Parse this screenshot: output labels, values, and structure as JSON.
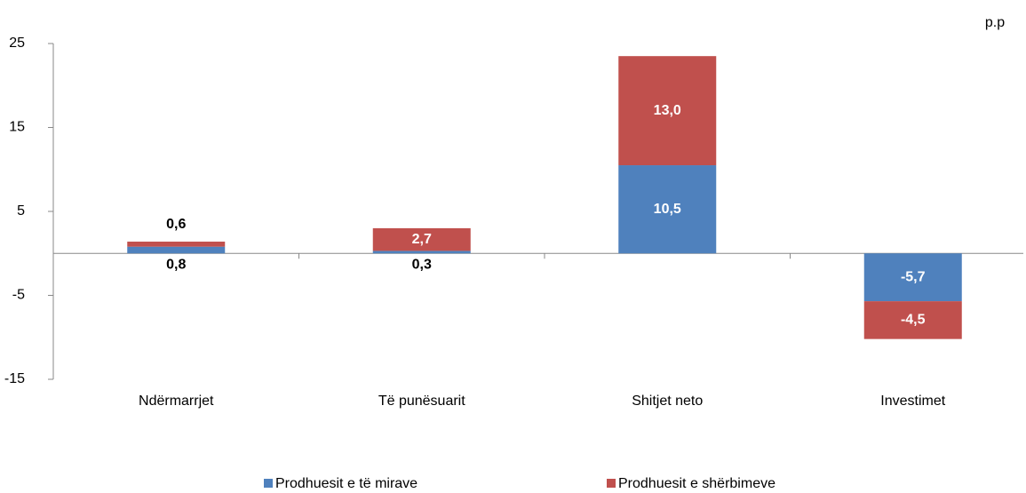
{
  "chart_data": {
    "type": "bar",
    "stacked": true,
    "y_unit_label": "p.p",
    "categories": [
      "Ndërmarrjet",
      "Të  punësuarit",
      "Shitjet neto",
      "Investimet"
    ],
    "series": [
      {
        "name": "Prodhuesit e të mirave",
        "color": "#4f81bd",
        "values": [
          0.8,
          0.3,
          10.5,
          -5.7
        ],
        "value_labels": [
          "0,8",
          "0,3",
          "10,5",
          "-5,7"
        ]
      },
      {
        "name": "Prodhuesit e shërbimeve",
        "color": "#c0504d",
        "values": [
          0.6,
          2.7,
          13.0,
          -4.5
        ],
        "value_labels": [
          "0,6",
          "2,7",
          "13,0",
          "-4,5"
        ]
      }
    ],
    "ylim": [
      -15,
      25
    ],
    "yticks": [
      -15,
      -5,
      5,
      15,
      25
    ],
    "grid": false
  }
}
